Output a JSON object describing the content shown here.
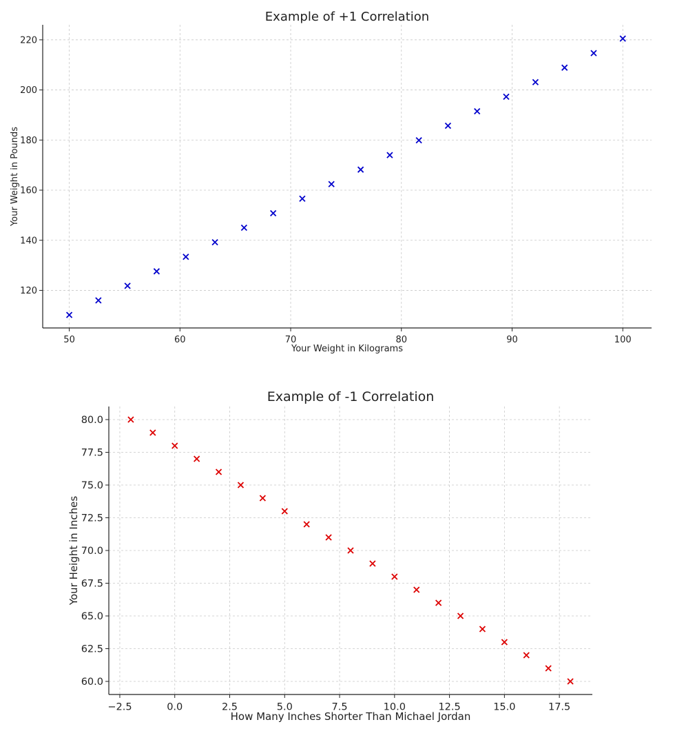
{
  "chart_data": [
    {
      "type": "scatter",
      "title": "Example of +1 Correlation",
      "xlabel": "Your Weight in Kilograms",
      "ylabel": "Your Weight in Pounds",
      "xlim": [
        47.6,
        102.6
      ],
      "ylim": [
        105,
        226
      ],
      "grid": true,
      "marker": "x",
      "color": "#0000cc",
      "xticks": [
        50,
        60,
        70,
        80,
        90,
        100
      ],
      "xtick_labels": [
        "50",
        "60",
        "70",
        "80",
        "90",
        "100"
      ],
      "yticks": [
        120,
        140,
        160,
        180,
        200,
        220
      ],
      "ytick_labels": [
        "120",
        "140",
        "160",
        "180",
        "200",
        "220"
      ],
      "x": [
        50.0,
        52.63,
        55.26,
        57.89,
        60.53,
        63.16,
        65.79,
        68.42,
        71.05,
        73.68,
        76.32,
        78.95,
        81.58,
        84.21,
        86.84,
        89.47,
        92.11,
        94.74,
        97.37,
        100.0
      ],
      "y": [
        110.2,
        116.0,
        121.8,
        127.6,
        133.4,
        139.2,
        145.0,
        150.8,
        156.6,
        162.4,
        168.2,
        174.0,
        179.9,
        185.7,
        191.5,
        197.3,
        203.1,
        208.9,
        214.7,
        220.5
      ]
    },
    {
      "type": "scatter",
      "title": "Example of -1 Correlation",
      "xlabel": "How Many Inches Shorter Than Michael Jordan",
      "ylabel": "Your Height in Inches",
      "xlim": [
        -3.0,
        19.0
      ],
      "ylim": [
        59.0,
        81.0
      ],
      "grid": true,
      "marker": "x",
      "color": "#dd0000",
      "xticks": [
        -2.5,
        0,
        2.5,
        5,
        7.5,
        10,
        12.5,
        15,
        17.5
      ],
      "xtick_labels": [
        "−2.5",
        "0.0",
        "2.5",
        "5.0",
        "7.5",
        "10.0",
        "12.5",
        "15.0",
        "17.5"
      ],
      "yticks": [
        60,
        62.5,
        65,
        67.5,
        70,
        72.5,
        75,
        77.5,
        80
      ],
      "ytick_labels": [
        "60.0",
        "62.5",
        "65.0",
        "67.5",
        "70.0",
        "72.5",
        "75.0",
        "77.5",
        "80.0"
      ],
      "x": [
        -2,
        -1,
        0,
        1,
        2,
        3,
        4,
        5,
        6,
        7,
        8,
        9,
        10,
        11,
        12,
        13,
        14,
        15,
        16,
        17,
        18
      ],
      "y": [
        80,
        79,
        78,
        77,
        76,
        75,
        74,
        73,
        72,
        71,
        70,
        69,
        68,
        67,
        66,
        65,
        64,
        63,
        62,
        61,
        60
      ]
    }
  ]
}
